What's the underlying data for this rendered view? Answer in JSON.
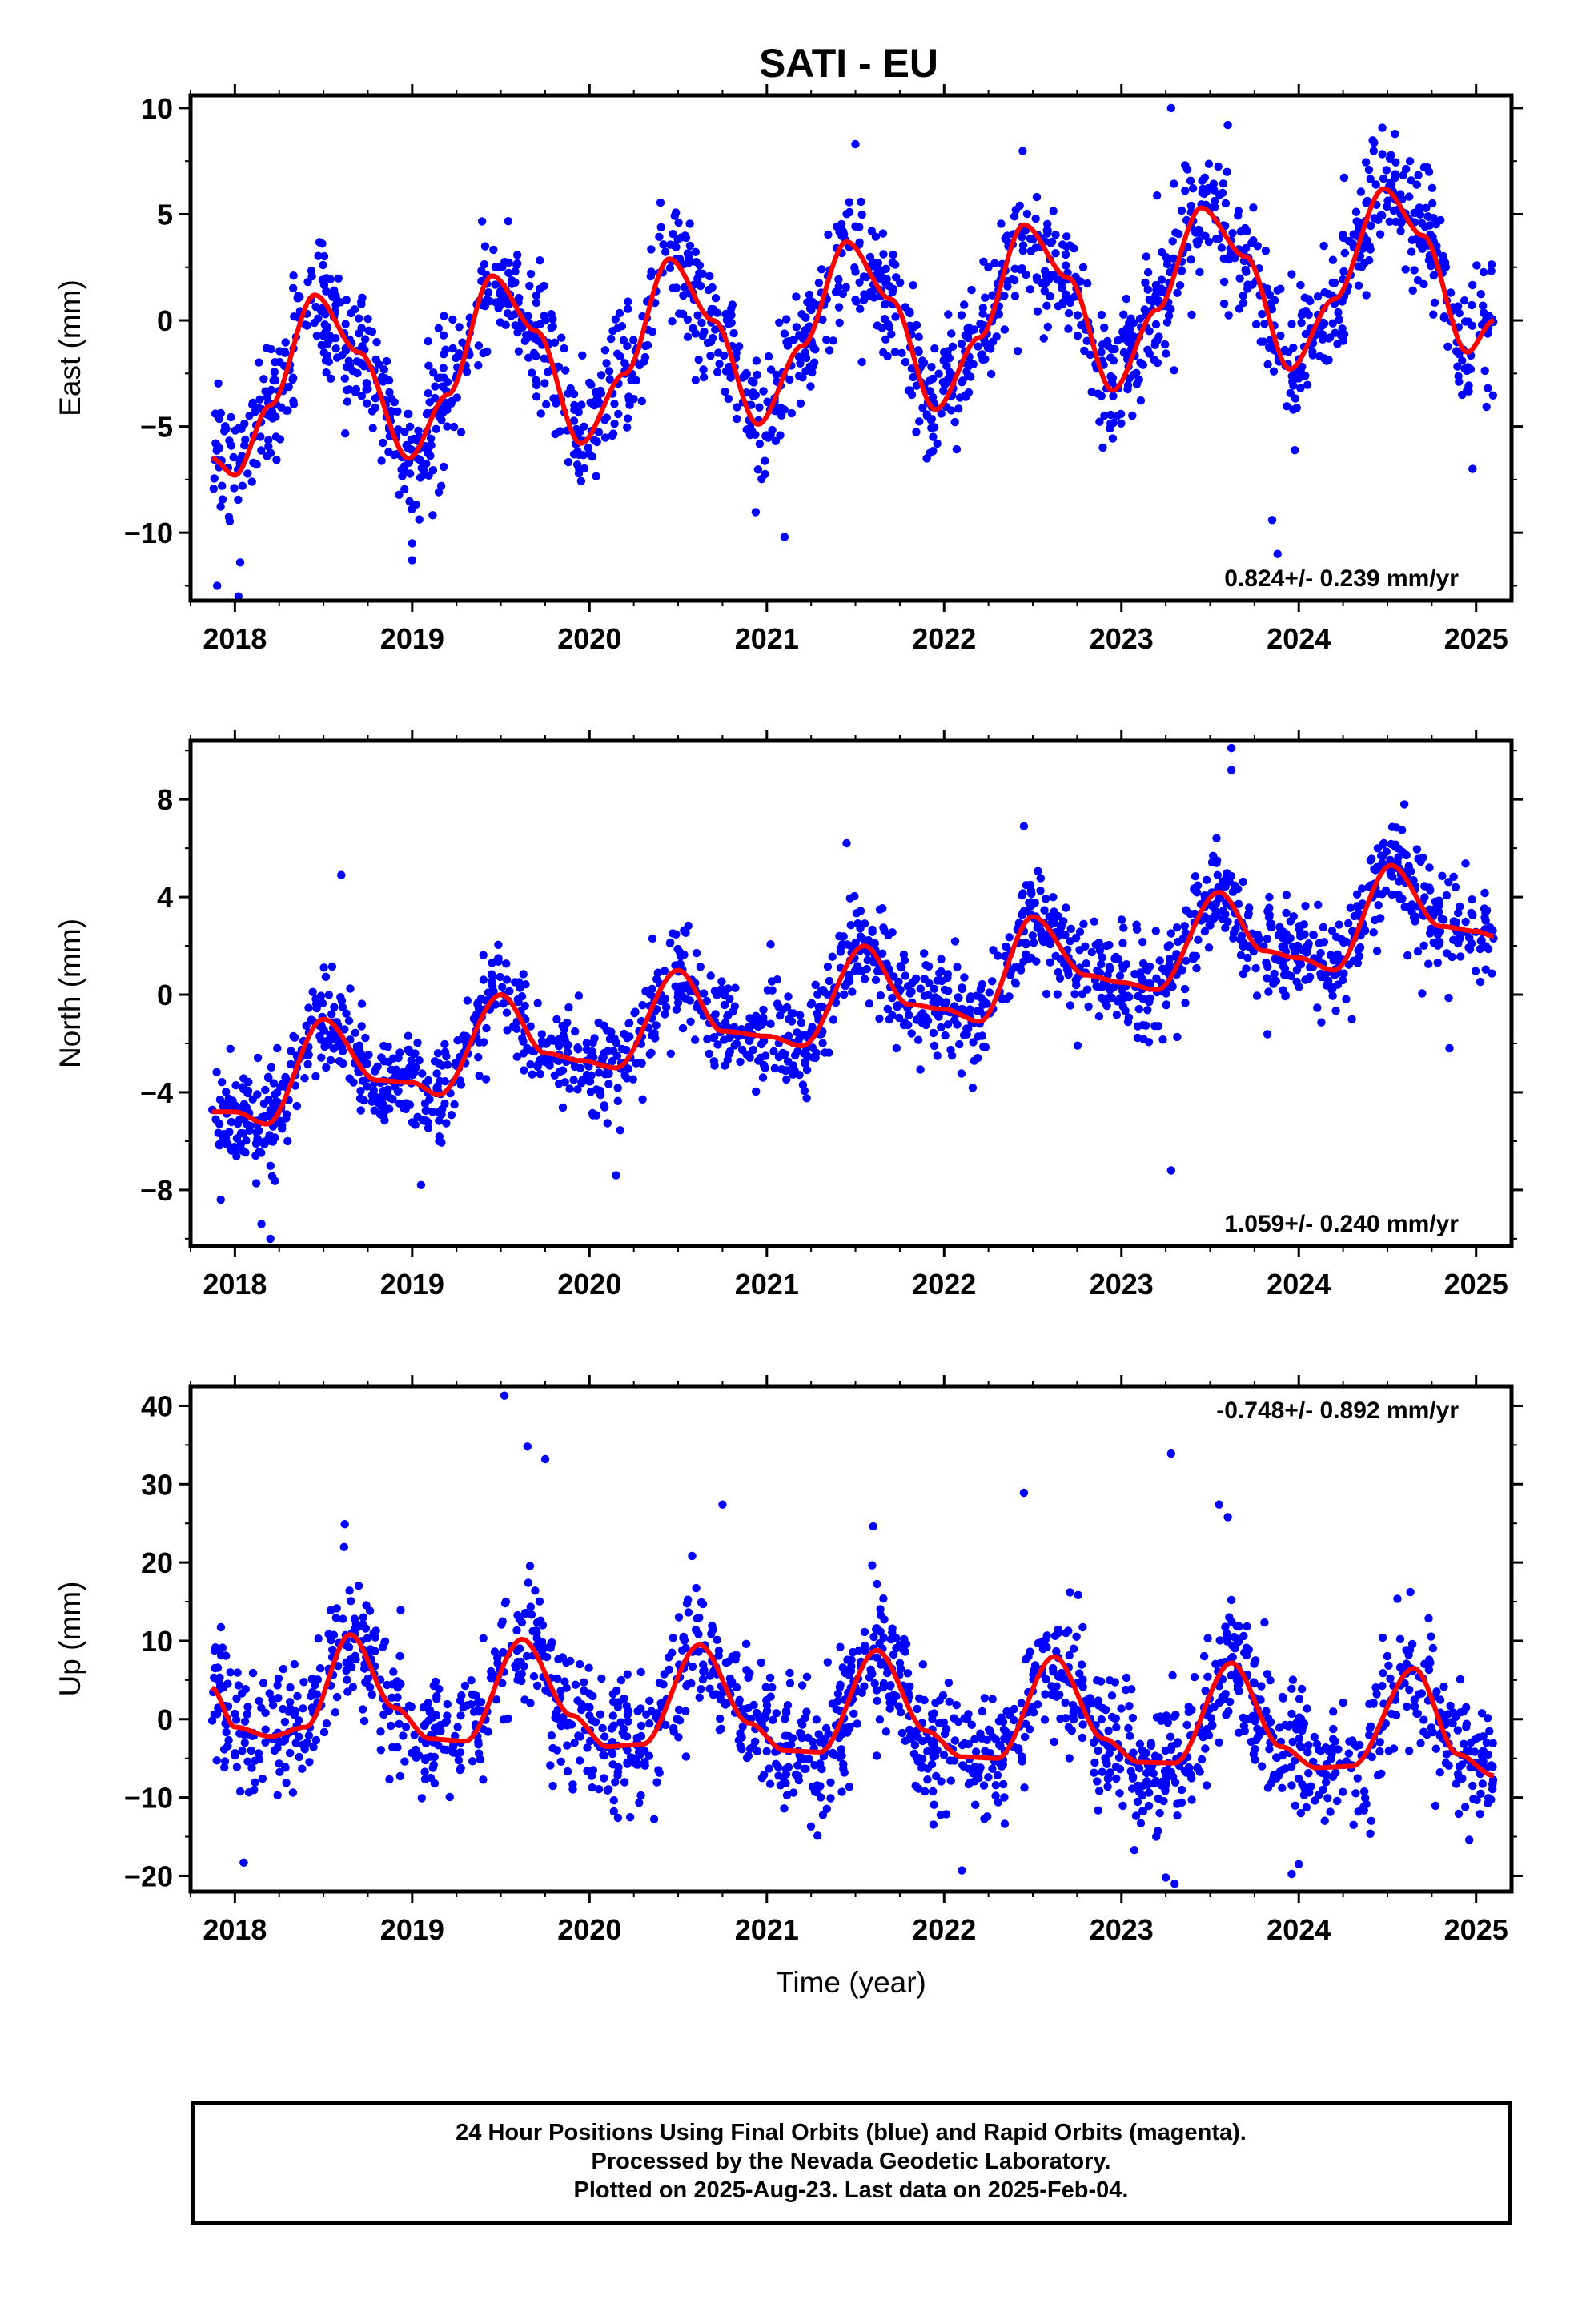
{
  "title": "SATI - EU",
  "colors": {
    "final_orbits": "#0000ff",
    "fit": "#ff0000",
    "axes": "#000000"
  },
  "chart_data": [
    {
      "type": "scatter",
      "panel": "east",
      "ylabel": "East (mm)",
      "xlabel": "",
      "xlim": [
        2017.75,
        2025.2
      ],
      "ylim": [
        -13.2,
        10.6
      ],
      "yticks": [
        -10,
        -5,
        0,
        5,
        10
      ],
      "yticklabels": [
        "−10",
        "−5",
        "0",
        "5",
        "10"
      ],
      "xticks": [
        2018,
        2019,
        2020,
        2021,
        2022,
        2023,
        2024,
        2025
      ],
      "xticklabels": [
        "2018",
        "2019",
        "2020",
        "2021",
        "2022",
        "2023",
        "2024",
        "2025"
      ],
      "rate_label": "0.824+/- 0.239 mm/yr",
      "rate_label_position": "bottom-right",
      "model": {
        "rate": 0.824,
        "rate_error": 0.239,
        "offset": -2.1,
        "amplitude": 4.3,
        "peak_phase": 0.53,
        "step_time": 2021.0,
        "step": 0
      },
      "fit_curve": {
        "x": [
          2017.87,
          2018.0,
          2018.2,
          2018.45,
          2018.7,
          2018.98,
          2019.2,
          2019.45,
          2019.7,
          2019.95,
          2020.2,
          2020.45,
          2020.7,
          2020.95,
          2021.2,
          2021.45,
          2021.7,
          2021.95,
          2022.2,
          2022.45,
          2022.7,
          2022.95,
          2023.2,
          2023.45,
          2023.7,
          2023.95,
          2024.2,
          2024.48,
          2024.7,
          2024.95,
          2025.1
        ],
        "y": [
          -6.5,
          -7.3,
          -4.0,
          1.2,
          -1.5,
          -6.5,
          -3.5,
          2.1,
          -0.5,
          -5.8,
          -2.5,
          2.9,
          0.0,
          -4.9,
          -1.2,
          3.7,
          1.0,
          -4.2,
          -0.8,
          4.5,
          2.0,
          -3.3,
          0.5,
          5.3,
          3.0,
          -2.3,
          1.0,
          6.2,
          4.0,
          -1.5,
          0.0
        ]
      },
      "scatter": {
        "seed": 11,
        "noise_sd": 1.5,
        "points_per_year": 240,
        "outliers": [
          [
            2017.9,
            -12.5
          ],
          [
            2018.02,
            -13.0
          ],
          [
            2018.03,
            -11.4
          ],
          [
            2019.0,
            -11.3
          ],
          [
            2019.0,
            -10.5
          ],
          [
            2021.1,
            -10.2
          ],
          [
            2023.28,
            10.0
          ],
          [
            2023.6,
            9.2
          ],
          [
            2023.85,
            -9.4
          ],
          [
            2023.88,
            -11.0
          ],
          [
            2021.5,
            8.3
          ],
          [
            2024.98,
            -7.0
          ]
        ]
      }
    },
    {
      "type": "scatter",
      "panel": "north",
      "ylabel": "North (mm)",
      "xlabel": "",
      "xlim": [
        2017.75,
        2025.2
      ],
      "ylim": [
        -10.3,
        10.4
      ],
      "yticks": [
        -8,
        -4,
        0,
        4,
        8
      ],
      "yticklabels": [
        "−8",
        "−4",
        "0",
        "4",
        "8"
      ],
      "xticks": [
        2018,
        2019,
        2020,
        2021,
        2022,
        2023,
        2024,
        2025
      ],
      "xticklabels": [
        "2018",
        "2019",
        "2020",
        "2021",
        "2022",
        "2023",
        "2024",
        "2025"
      ],
      "rate_label": "1.059+/- 0.240 mm/yr",
      "rate_label_position": "bottom-right",
      "model": {
        "rate": 1.059,
        "rate_error": 0.24,
        "offset": -1.0,
        "amplitude": 1.6,
        "peak_phase": 0.55,
        "step_time": 2021.0,
        "step": 0
      },
      "fit_curve": {
        "x": [
          2017.87,
          2018.0,
          2018.18,
          2018.5,
          2018.8,
          2019.0,
          2019.15,
          2019.5,
          2019.75,
          2019.95,
          2020.15,
          2020.5,
          2020.75,
          2021.0,
          2021.2,
          2021.55,
          2021.8,
          2022.0,
          2022.2,
          2022.5,
          2022.8,
          2023.0,
          2023.2,
          2023.55,
          2023.8,
          2024.0,
          2024.2,
          2024.52,
          2024.8,
          2025.0,
          2025.1
        ],
        "y": [
          -4.8,
          -4.8,
          -5.3,
          -1.0,
          -3.5,
          -3.6,
          -4.1,
          0.0,
          -2.4,
          -2.7,
          -3.0,
          1.0,
          -1.5,
          -1.7,
          -2.1,
          2.0,
          -0.4,
          -0.6,
          -1.1,
          3.2,
          0.8,
          0.5,
          0.2,
          4.2,
          1.8,
          1.5,
          1.0,
          5.3,
          2.8,
          2.6,
          2.4
        ]
      },
      "scatter": {
        "seed": 23,
        "noise_sd": 1.0,
        "points_per_year": 240,
        "outliers": [
          [
            2017.92,
            -8.4
          ],
          [
            2018.2,
            -10.0
          ],
          [
            2018.15,
            -9.4
          ],
          [
            2018.6,
            4.9
          ],
          [
            2019.05,
            -7.8
          ],
          [
            2020.15,
            -7.4
          ],
          [
            2021.45,
            6.2
          ],
          [
            2022.45,
            6.9
          ],
          [
            2023.28,
            -7.2
          ],
          [
            2023.62,
            10.1
          ],
          [
            2023.62,
            9.2
          ],
          [
            2024.85,
            -2.2
          ],
          [
            2024.48,
            6.2
          ]
        ]
      }
    },
    {
      "type": "scatter",
      "panel": "up",
      "ylabel": "Up (mm)",
      "xlabel": "Time (year)",
      "xlim": [
        2017.75,
        2025.2
      ],
      "ylim": [
        -22.0,
        42.5
      ],
      "yticks": [
        -20,
        -10,
        0,
        10,
        20,
        30,
        40
      ],
      "yticklabels": [
        "−20",
        "−10",
        "0",
        "10",
        "20",
        "30",
        "40"
      ],
      "xticks": [
        2018,
        2019,
        2020,
        2021,
        2022,
        2023,
        2024,
        2025
      ],
      "xticklabels": [
        "2018",
        "2019",
        "2020",
        "2021",
        "2022",
        "2023",
        "2024",
        "2025"
      ],
      "rate_label": "-0.748+/- 0.892 mm/yr",
      "rate_label_position": "top-right",
      "model": {
        "rate": -0.748,
        "rate_error": 0.892,
        "offset": 1.5,
        "amplitude": 7.0,
        "peak_phase": 0.65,
        "step_time": 2021.0,
        "step": 0
      },
      "fit_curve": {
        "x": [
          2017.87,
          2018.0,
          2018.2,
          2018.4,
          2018.65,
          2018.9,
          2019.1,
          2019.3,
          2019.62,
          2019.9,
          2020.1,
          2020.3,
          2020.62,
          2020.9,
          2021.1,
          2021.3,
          2021.62,
          2021.9,
          2022.1,
          2022.3,
          2022.62,
          2022.9,
          2023.1,
          2023.3,
          2023.62,
          2023.9,
          2024.1,
          2024.3,
          2024.65,
          2024.9,
          2025.1
        ],
        "y": [
          4.0,
          -1.0,
          -2.2,
          -1.0,
          10.8,
          1.5,
          -2.5,
          -2.8,
          10.2,
          0.5,
          -3.5,
          -3.2,
          9.5,
          -0.5,
          -4.0,
          -4.2,
          8.8,
          -1.5,
          -4.8,
          -5.0,
          8.0,
          -2.5,
          -5.5,
          -5.6,
          7.2,
          -3.5,
          -6.2,
          -6.0,
          6.5,
          -4.5,
          -7.2
        ]
      },
      "scatter": {
        "seed": 37,
        "noise_sd": 4.2,
        "points_per_year": 240,
        "outliers": [
          [
            2019.52,
            41.3
          ],
          [
            2019.65,
            34.8
          ],
          [
            2019.75,
            33.2
          ],
          [
            2023.28,
            33.9
          ],
          [
            2022.45,
            28.9
          ],
          [
            2020.75,
            27.4
          ],
          [
            2023.55,
            27.4
          ],
          [
            2023.6,
            25.8
          ],
          [
            2018.62,
            24.9
          ],
          [
            2021.6,
            24.6
          ],
          [
            2018.05,
            -18.3
          ],
          [
            2023.3,
            -21.0
          ],
          [
            2023.25,
            -20.2
          ],
          [
            2024.0,
            -18.5
          ],
          [
            2022.1,
            -19.3
          ]
        ]
      }
    }
  ],
  "footer": {
    "line1": "24 Hour Positions Using Final Orbits (blue) and Rapid Orbits (magenta).",
    "line2": "Processed by the Nevada Geodetic Laboratory.",
    "line3": "Plotted on 2025-Aug-23. Last data on 2025-Feb-04."
  }
}
